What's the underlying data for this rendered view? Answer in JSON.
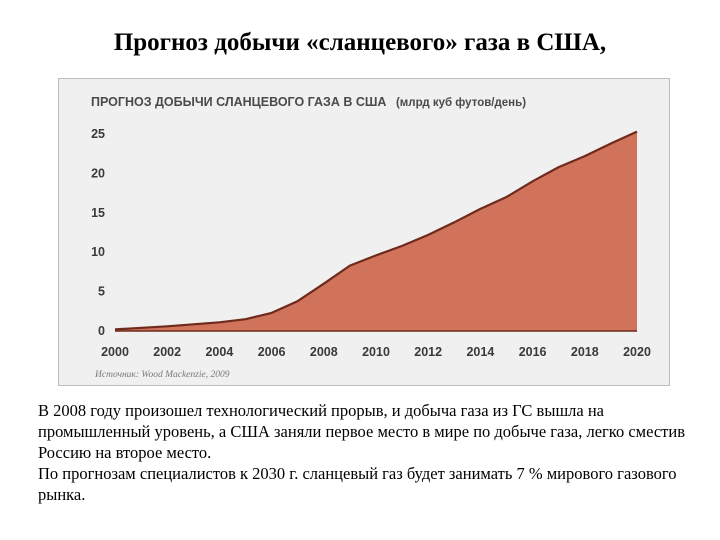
{
  "title": "Прогноз добычи «сланцевого» газа в США,",
  "chart_data": {
    "type": "area",
    "title": "ПРОГНОЗ ДОБЫЧИ СЛАНЦЕВОГО ГАЗА В США",
    "unit": "(млрд куб футов/день)",
    "source": "Источник: Wood Mackenzie, 2009",
    "x": [
      2000,
      2002,
      2004,
      2005,
      2006,
      2007,
      2008,
      2009,
      2010,
      2011,
      2012,
      2013,
      2014,
      2015,
      2016,
      2017,
      2018,
      2019,
      2020
    ],
    "y": [
      0.2,
      0.6,
      1.1,
      1.5,
      2.3,
      3.8,
      6.0,
      8.3,
      9.6,
      10.8,
      12.2,
      13.8,
      15.5,
      17.0,
      19.0,
      20.8,
      22.2,
      23.8,
      25.3
    ],
    "xticks": [
      "2000",
      "2002",
      "2004",
      "2006",
      "2008",
      "2010",
      "2012",
      "2014",
      "2016",
      "2018",
      "2020"
    ],
    "yticks": [
      "0",
      "5",
      "10",
      "15",
      "20",
      "25"
    ],
    "xlim": [
      2000,
      2020
    ],
    "ylim": [
      0,
      25
    ],
    "fill_color": "#d0735a",
    "line_color": "#6e2a1c",
    "grid": false,
    "legend": "none"
  },
  "caption": {
    "paragraph1": "В 2008 году произошел технологический прорыв, и добыча газа из ГС вышла на промышленный уровень, а США заняли первое место в мире по добыче газа, легко сместив  Россию на второе место.",
    "paragraph2": "По прогнозам специалистов к 2030 г. сланцевый газ будет занимать 7 % мирового газового рынка."
  }
}
